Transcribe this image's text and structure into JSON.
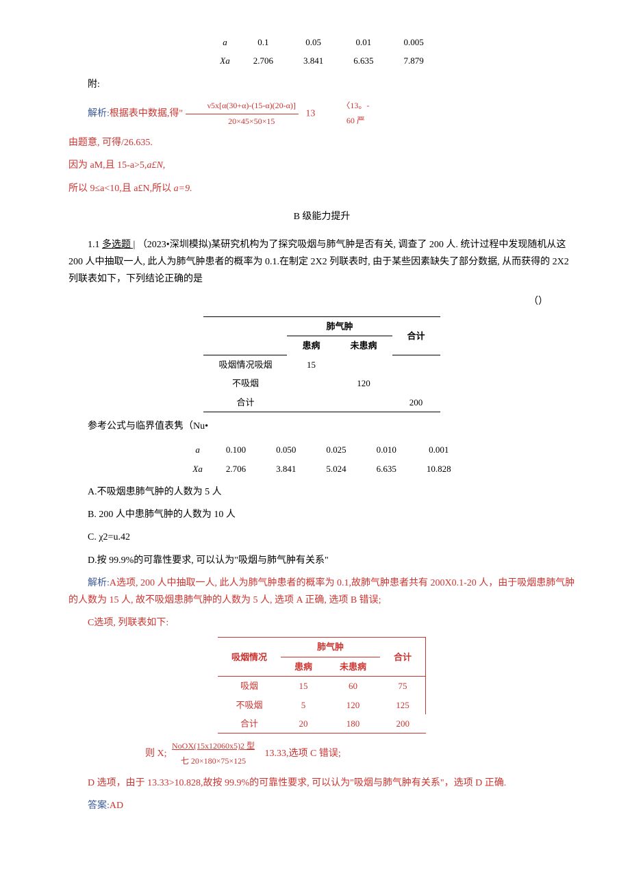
{
  "colors": {
    "red": "#cc3430",
    "blue": "#3b5998",
    "text": "#000000",
    "bg": "#ffffff"
  },
  "typography": {
    "body_size_pt": 10.5,
    "table_size_pt": 9.5,
    "line_height": 1.8,
    "font_family": "SimSun"
  },
  "table1": {
    "type": "table",
    "row_label_1": "a",
    "row_label_2": "Xa",
    "cols": [
      "0.1",
      "0.05",
      "0.01",
      "0.005"
    ],
    "vals": [
      "2.706",
      "3.841",
      "6.635",
      "7.879"
    ]
  },
  "attach_label": "附:",
  "sol1": {
    "prefix": "解析:",
    "line1_a": "根据表中数据,",
    "line1_b": "得\"",
    "frac1_num": "ν5x[α(30+α)-(15-α)(20-α)]",
    "frac1_den": "20×45×50×15",
    "mid1": "13",
    "frac2_num": "〈13。-",
    "frac2_den": "60 严",
    "line2": "由题意, 可得/26.635.",
    "line3a": "因为 aM,且 15-a>5,",
    "line3b": "a£N,",
    "line4a": "所以 9≤a<10,且 a£N,所以 ",
    "line4b": "a=9."
  },
  "section_b": "B 级能力提升",
  "q11": {
    "num": "1.1  ",
    "tag": "多选题 |",
    "body1": " （2023•深圳模拟)某研究机构为了探究吸烟与肺气肿是否有关, 调查了 200 人. 统计过程中发现随机从这 200 人中抽取一人, 此人为肺气肿患者的概率为 0.1.在制定 2X2 列联表时, 由于某些因素缺失了部分数据, 从而获得的 2X2 列联表如下，下列结论正确的是",
    "paren": "（）"
  },
  "table2": {
    "type": "contingency",
    "col_group": "肺气肿",
    "col_a": "患病",
    "col_b": "未患病",
    "col_total": "合计",
    "rows_label": "吸烟情况吸烟",
    "row2_label": "不吸烟",
    "row3_label": "合计",
    "r1": [
      "15",
      "",
      ""
    ],
    "r2": [
      "",
      "120",
      ""
    ],
    "r3": [
      "",
      "",
      "200"
    ]
  },
  "ref_label": "参考公式与临界值表隽（Nu•",
  "table3": {
    "type": "table",
    "row_label_1": "a",
    "row_label_2": "Xa",
    "cols": [
      "0.100",
      "0.050",
      "0.025",
      "0.010",
      "0.001"
    ],
    "vals": [
      "2.706",
      "3.841",
      "5.024",
      "6.635",
      "10.828"
    ]
  },
  "opts": {
    "A": "A.不吸烟患肺气肿的人数为 5 人",
    "B": "B.  200 人中患肺气肿的人数为 10 人",
    "C": "C.  χ2=u.42",
    "D": "D.按 99.9%的可靠性要求, 可以认为\"吸烟与肺气肿有关系\""
  },
  "sol2": {
    "prefix": "解析:",
    "lineA": "A选项, 200 人中抽取一人, 此人为肺气肿患者的概率为 0.1,故肺气肿患者共有 200X0.1-20 人，由于吸烟患肺气肿的人数为 15 人, 故不吸烟患肺气肿的人数为 5 人, 选项 A 正确, 选项 B 错误;",
    "lineC_pre": "C选项, 列联表如下:",
    "chi_label": "则 X;",
    "chi_num": "NoOX(15x12060x5)2 型",
    "chi_den": "七 20×180×75×125",
    "chi_val": "13.33,选项 C 错误;",
    "lineD": "D 选项，由于 13.33>10.828,故按 99.9%的可靠性要求, 可以认为\"吸烟与肺气肿有关系\"，选项 D 正确.",
    "ans_label": "答案:",
    "ans": "AD"
  },
  "table4": {
    "type": "contingency",
    "row_header": "吸烟情况",
    "col_group": "肺气肿",
    "col_a": "患病",
    "col_b": "未患病",
    "col_total": "合计",
    "rows": [
      [
        "吸烟",
        "15",
        "60",
        "75"
      ],
      [
        "不吸烟",
        "5",
        "120",
        "125"
      ],
      [
        "合计",
        "20",
        "180",
        "200"
      ]
    ]
  }
}
